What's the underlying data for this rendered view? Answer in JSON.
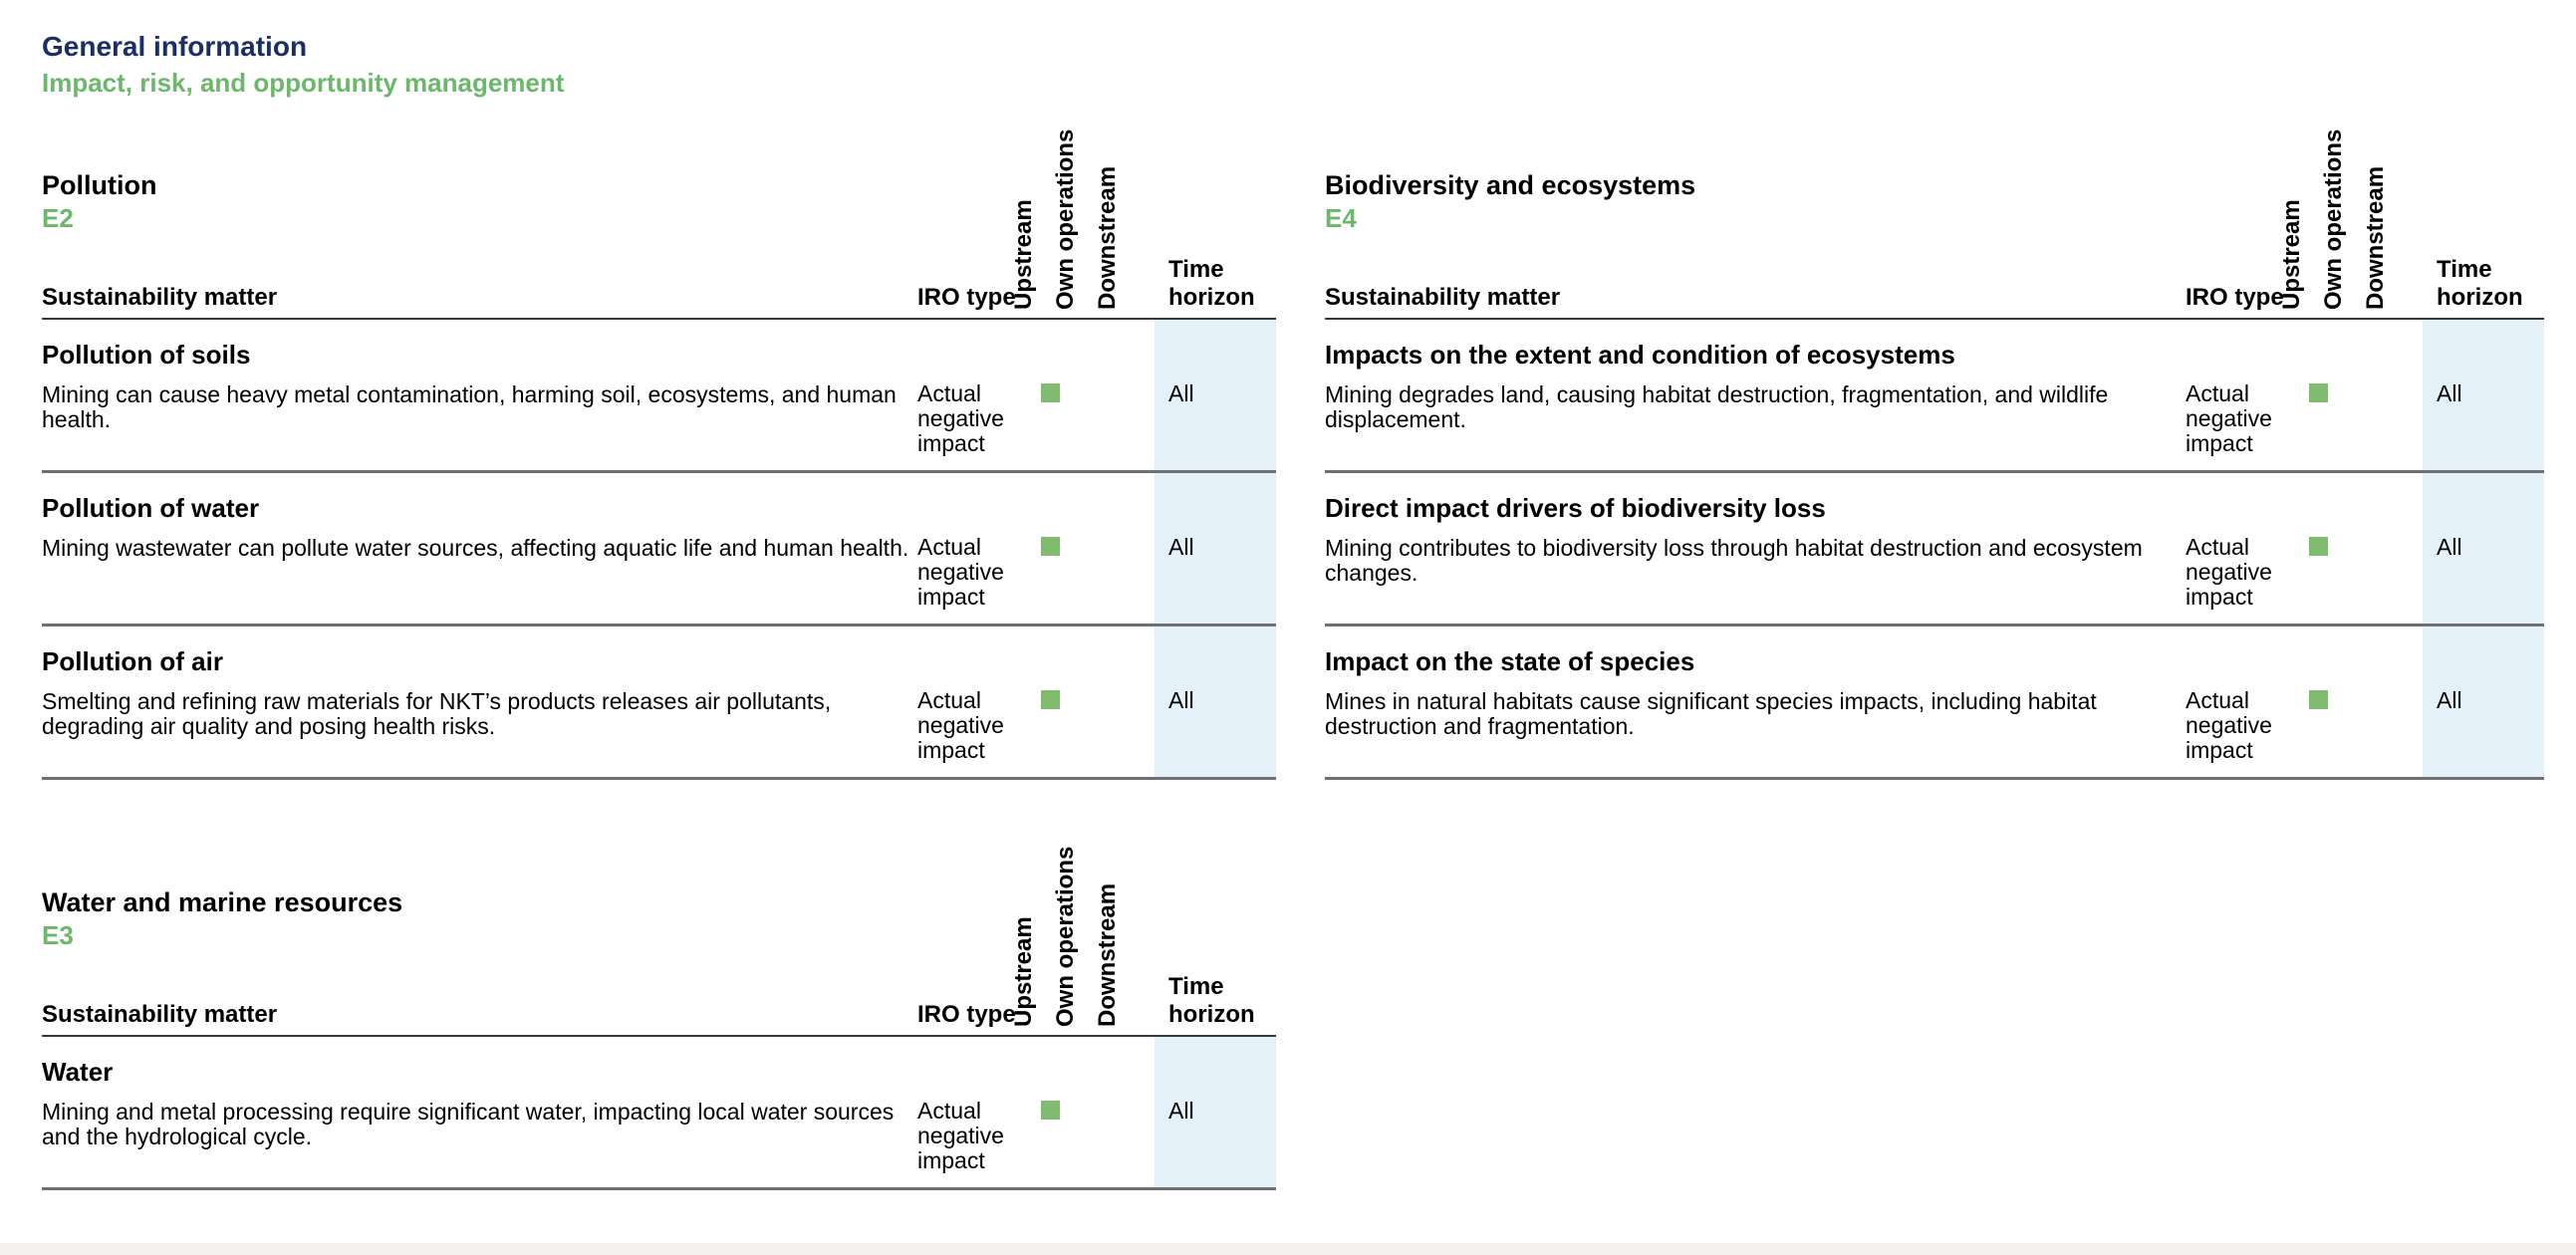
{
  "page": {
    "section_title": "General information",
    "section_subtitle": "Impact, risk, and opportunity management"
  },
  "colors": {
    "navy": "#1c2e66",
    "green_text": "#6cb86b",
    "marker_green": "#7fbc70",
    "time_column_bg": "#e4f1f8",
    "header_rule": "#37393b",
    "row_divider": "#6e7073"
  },
  "column_headers": {
    "matter": "Sustainability matter",
    "iro_type": "IRO type",
    "upstream": "Upstream",
    "own_operations": "Own operations",
    "downstream": "Downstream",
    "time_horizon": "Time horizon"
  },
  "legend": {
    "marker_icon": "green-square"
  },
  "tables": [
    {
      "title": "Pollution",
      "code": "E2",
      "rows": [
        {
          "matter": "Pollution of soils",
          "description": "Mining can cause heavy metal contamination, harming soil, ecosystems, and human health.",
          "iro_type": "Actual negative impact",
          "upstream": true,
          "own_operations": false,
          "downstream": false,
          "time_horizon": "All"
        },
        {
          "matter": "Pollution of water",
          "description": "Mining wastewater can pollute water sources, affecting aquatic life and human health.",
          "iro_type": "Actual negative impact",
          "upstream": true,
          "own_operations": false,
          "downstream": false,
          "time_horizon": "All"
        },
        {
          "matter": "Pollution of air",
          "description": "Smelting and refining raw materials for NKT’s products releases air pollutants, degrading air quality and posing health risks.",
          "iro_type": "Actual negative impact",
          "upstream": true,
          "own_operations": false,
          "downstream": false,
          "time_horizon": "All"
        }
      ]
    },
    {
      "title": "Biodiversity and ecosystems",
      "code": "E4",
      "rows": [
        {
          "matter": "Impacts on the extent and condition of ecosystems",
          "description": "Mining degrades land, causing habitat destruction, fragmentation, and wildlife displacement.",
          "iro_type": "Actual negative impact",
          "upstream": true,
          "own_operations": false,
          "downstream": false,
          "time_horizon": "All"
        },
        {
          "matter": "Direct impact drivers of biodiversity loss",
          "description": "Mining contributes to biodiversity loss through habitat destruction and ecosystem changes.",
          "iro_type": "Actual negative impact",
          "upstream": true,
          "own_operations": false,
          "downstream": false,
          "time_horizon": "All"
        },
        {
          "matter": "Impact on the state of species",
          "description": "Mines in natural habitats cause significant species impacts, including habitat destruction and fragmentation.",
          "iro_type": "Actual negative impact",
          "upstream": true,
          "own_operations": false,
          "downstream": false,
          "time_horizon": "All"
        }
      ]
    },
    {
      "title": "Water and marine resources",
      "code": "E3",
      "rows": [
        {
          "matter": "Water",
          "description": "Mining and metal processing require significant water, impacting local water sources and the hydrological cycle.",
          "iro_type": "Actual negative impact",
          "upstream": true,
          "own_operations": false,
          "downstream": false,
          "time_horizon": "All"
        }
      ]
    }
  ]
}
